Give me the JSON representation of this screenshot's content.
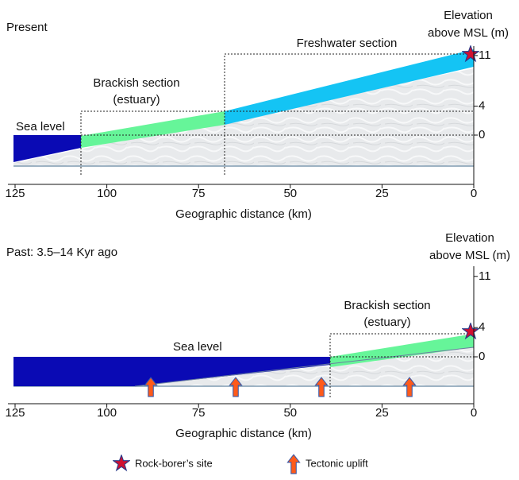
{
  "panels": [
    {
      "title": "Present",
      "elevation_label": [
        "Elevation",
        "above MSL (m)"
      ],
      "sea_label": "Sea level",
      "section_labels": [
        [
          "Brackish section",
          "(estuary)"
        ],
        [
          "Freshwater section"
        ]
      ],
      "x_label": "Geographic distance (km)",
      "xticks": [
        125,
        100,
        75,
        50,
        25,
        0
      ],
      "yticks": [
        11,
        4,
        0
      ]
    },
    {
      "title": "Past: 3.5–14 Kyr ago",
      "elevation_label": [
        "Elevation",
        "above MSL (m)"
      ],
      "sea_label": "Sea level",
      "section_labels": [
        [
          "Brackish section",
          "(estuary)"
        ]
      ],
      "x_label": "Geographic distance (km)",
      "xticks": [
        125,
        100,
        75,
        50,
        25,
        0
      ],
      "yticks": [
        11,
        4,
        0
      ]
    }
  ],
  "legend": [
    "Rock-borer’s site",
    "Tectonic uplift"
  ]
}
